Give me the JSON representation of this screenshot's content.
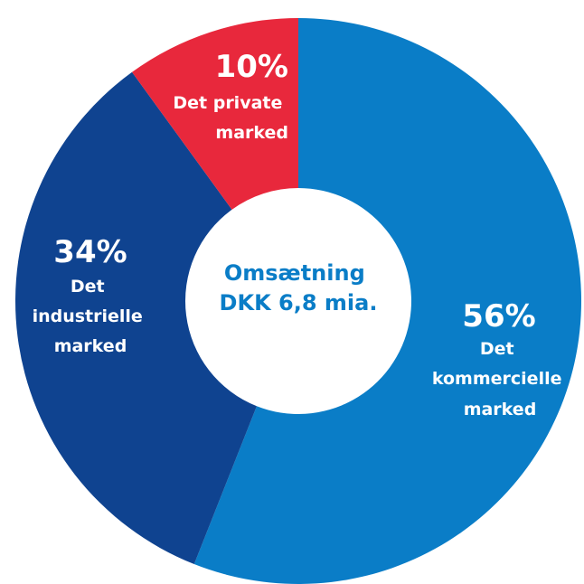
{
  "chart_data": {
    "type": "pie",
    "donut": true,
    "center_text": [
      "Omsætning",
      "DKK 6,8 mia."
    ],
    "slices": [
      {
        "key": "kommercielle",
        "value": 56,
        "percent_label": "56%",
        "label_lines": [
          "Det",
          "kommercielle",
          "marked"
        ],
        "color": "#0a7dc7"
      },
      {
        "key": "industrielle",
        "value": 34,
        "percent_label": "34%",
        "label_lines": [
          "Det",
          "industrielle",
          "marked"
        ],
        "color": "#0f4390"
      },
      {
        "key": "private",
        "value": 10,
        "percent_label": "10%",
        "label_lines": [
          "Det private",
          "marked"
        ],
        "color": "#e8283c"
      }
    ]
  },
  "colors": {
    "label_text": "#ffffff",
    "center_text": "#0a7dc7",
    "background": "#ffffff"
  }
}
